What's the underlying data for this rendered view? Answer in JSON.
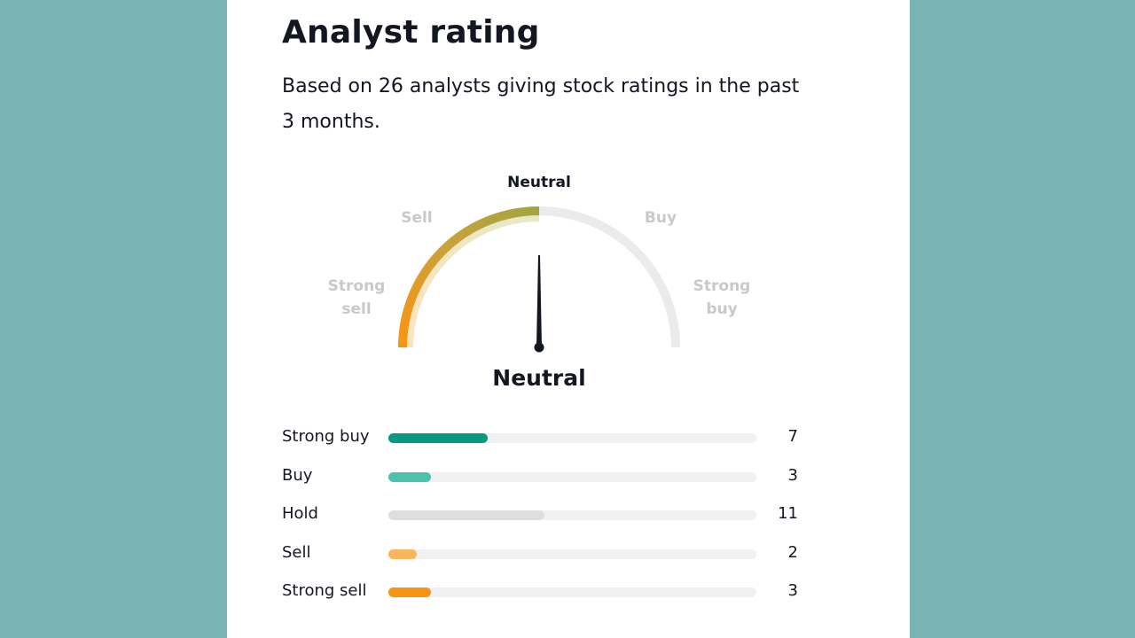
{
  "header": {
    "title": "Analyst rating",
    "subtitle": "Based on 26 analysts giving stock ratings in the past 3 months."
  },
  "gauge": {
    "labels": {
      "strong_sell": "Strong sell",
      "sell": "Sell",
      "neutral": "Neutral",
      "buy": "Buy",
      "strong_buy": "Strong buy"
    },
    "result": "Neutral",
    "needle_position": 0.5
  },
  "breakdown": [
    {
      "label": "Strong buy",
      "count": "7",
      "value": 7,
      "color": "#089981"
    },
    {
      "label": "Buy",
      "count": "3",
      "value": 3,
      "color": "#4bc2ab"
    },
    {
      "label": "Hold",
      "count": "11",
      "value": 11,
      "color": "#dedede"
    },
    {
      "label": "Sell",
      "count": "2",
      "value": 2,
      "color": "#fbb55c"
    },
    {
      "label": "Strong sell",
      "count": "3",
      "value": 3,
      "color": "#f79513"
    }
  ],
  "colors": {
    "background": "#7ab4b2",
    "card": "#ffffff",
    "track": "#f1f1f1",
    "arc_inactive": "#ebebeb",
    "arc_start": "#f79513",
    "arc_end": "#a3a43f"
  }
}
